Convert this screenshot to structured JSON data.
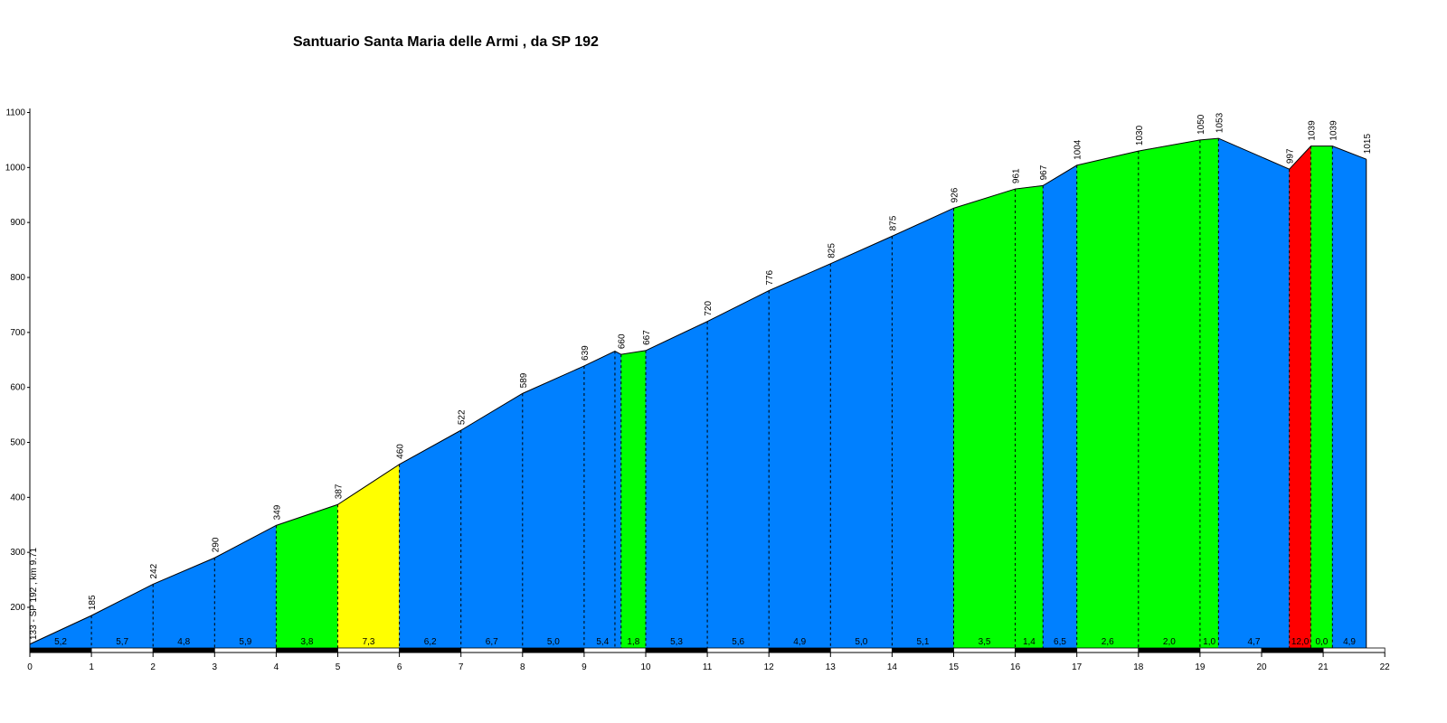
{
  "chart_data": {
    "type": "area",
    "title": "Santuario Santa Maria delle Armi , da SP 192",
    "xlabel": "",
    "ylabel": "",
    "xlim": [
      0,
      22
    ],
    "ylim": [
      120,
      1100
    ],
    "x_ticks": [
      "0",
      "1",
      "2",
      "3",
      "4",
      "5",
      "6",
      "7",
      "8",
      "9",
      "10",
      "11",
      "12",
      "13",
      "14",
      "15",
      "16",
      "17",
      "18",
      "19",
      "20",
      "21",
      "22"
    ],
    "y_ticks": [
      "200",
      "300",
      "400",
      "500",
      "600",
      "700",
      "800",
      "900",
      "1000",
      "1100"
    ],
    "grid": false,
    "start_label": "133 - SP 192 , km 9.71",
    "profile_points": [
      {
        "km": 0,
        "alt": 133
      },
      {
        "km": 1,
        "alt": 185
      },
      {
        "km": 2,
        "alt": 242
      },
      {
        "km": 3,
        "alt": 290
      },
      {
        "km": 4,
        "alt": 349
      },
      {
        "km": 5,
        "alt": 387
      },
      {
        "km": 6,
        "alt": 460
      },
      {
        "km": 7,
        "alt": 522
      },
      {
        "km": 8,
        "alt": 589
      },
      {
        "km": 9,
        "alt": 639
      },
      {
        "km": 9.5,
        "alt": 666
      },
      {
        "km": 9.6,
        "alt": 660
      },
      {
        "km": 10,
        "alt": 667
      },
      {
        "km": 11,
        "alt": 720
      },
      {
        "km": 12,
        "alt": 776
      },
      {
        "km": 13,
        "alt": 825
      },
      {
        "km": 14,
        "alt": 875
      },
      {
        "km": 15,
        "alt": 926
      },
      {
        "km": 16,
        "alt": 961
      },
      {
        "km": 16.45,
        "alt": 967
      },
      {
        "km": 17,
        "alt": 1004
      },
      {
        "km": 18,
        "alt": 1030
      },
      {
        "km": 19,
        "alt": 1050
      },
      {
        "km": 19.3,
        "alt": 1053
      },
      {
        "km": 20.45,
        "alt": 997
      },
      {
        "km": 20.8,
        "alt": 1039
      },
      {
        "km": 21.15,
        "alt": 1039
      },
      {
        "km": 21.7,
        "alt": 1015
      }
    ],
    "altitude_labels": [
      {
        "km": 1,
        "label": "185"
      },
      {
        "km": 2,
        "label": "242"
      },
      {
        "km": 3,
        "label": "290"
      },
      {
        "km": 4,
        "label": "349"
      },
      {
        "km": 5,
        "label": "387"
      },
      {
        "km": 6,
        "label": "460"
      },
      {
        "km": 7,
        "label": "522"
      },
      {
        "km": 8,
        "label": "589"
      },
      {
        "km": 9,
        "label": "639"
      },
      {
        "km": 9.6,
        "label": "660"
      },
      {
        "km": 10,
        "label": "667"
      },
      {
        "km": 11,
        "label": "720"
      },
      {
        "km": 12,
        "label": "776"
      },
      {
        "km": 13,
        "label": "825"
      },
      {
        "km": 14,
        "label": "875"
      },
      {
        "km": 15,
        "label": "926"
      },
      {
        "km": 16,
        "label": "961"
      },
      {
        "km": 16.45,
        "label": "967"
      },
      {
        "km": 17,
        "label": "1004"
      },
      {
        "km": 18,
        "label": "1030"
      },
      {
        "km": 19,
        "label": "1050"
      },
      {
        "km": 19.3,
        "label": "1053"
      },
      {
        "km": 20.45,
        "label": "997"
      },
      {
        "km": 20.8,
        "label": "1039"
      },
      {
        "km": 21.15,
        "label": "1039"
      },
      {
        "km": 21.7,
        "label": "1015"
      }
    ],
    "segments": [
      {
        "from": 0,
        "to": 1,
        "gradient": "5,2",
        "color": "#0080ff"
      },
      {
        "from": 1,
        "to": 2,
        "gradient": "5,7",
        "color": "#0080ff"
      },
      {
        "from": 2,
        "to": 3,
        "gradient": "4,8",
        "color": "#0080ff"
      },
      {
        "from": 3,
        "to": 4,
        "gradient": "5,9",
        "color": "#0080ff"
      },
      {
        "from": 4,
        "to": 5,
        "gradient": "3,8",
        "color": "#00ff00"
      },
      {
        "from": 5,
        "to": 6,
        "gradient": "7,3",
        "color": "#ffff00"
      },
      {
        "from": 6,
        "to": 7,
        "gradient": "6,2",
        "color": "#0080ff"
      },
      {
        "from": 7,
        "to": 8,
        "gradient": "6,7",
        "color": "#0080ff"
      },
      {
        "from": 8,
        "to": 9,
        "gradient": "5,0",
        "color": "#0080ff"
      },
      {
        "from": 9,
        "to": 9.6,
        "gradient": "5,4",
        "color": "#0080ff"
      },
      {
        "from": 9.6,
        "to": 10,
        "gradient": "1,8",
        "color": "#00ff00"
      },
      {
        "from": 10,
        "to": 11,
        "gradient": "5,3",
        "color": "#0080ff"
      },
      {
        "from": 11,
        "to": 12,
        "gradient": "5,6",
        "color": "#0080ff"
      },
      {
        "from": 12,
        "to": 13,
        "gradient": "4,9",
        "color": "#0080ff"
      },
      {
        "from": 13,
        "to": 14,
        "gradient": "5,0",
        "color": "#0080ff"
      },
      {
        "from": 14,
        "to": 15,
        "gradient": "5,1",
        "color": "#0080ff"
      },
      {
        "from": 15,
        "to": 16,
        "gradient": "3,5",
        "color": "#00ff00"
      },
      {
        "from": 16,
        "to": 16.45,
        "gradient": "1,4",
        "color": "#00ff00"
      },
      {
        "from": 16.45,
        "to": 17,
        "gradient": "6,5",
        "color": "#0080ff"
      },
      {
        "from": 17,
        "to": 18,
        "gradient": "2,6",
        "color": "#00ff00"
      },
      {
        "from": 18,
        "to": 19,
        "gradient": "2,0",
        "color": "#00ff00"
      },
      {
        "from": 19,
        "to": 19.3,
        "gradient": "1,0",
        "color": "#00ff00"
      },
      {
        "from": 19.3,
        "to": 20.45,
        "gradient": "4,7",
        "color": "#0080ff"
      },
      {
        "from": 20.45,
        "to": 20.8,
        "gradient": "12,0",
        "color": "#ff0000"
      },
      {
        "from": 20.8,
        "to": 21.15,
        "gradient": "0,0",
        "color": "#00ff00"
      },
      {
        "from": 21.15,
        "to": 21.7,
        "gradient": "4,9",
        "color": "#0080ff"
      }
    ],
    "colors": {
      "blue": "#0080ff",
      "green": "#00ff00",
      "yellow": "#ffff00",
      "red": "#ff0000"
    }
  }
}
